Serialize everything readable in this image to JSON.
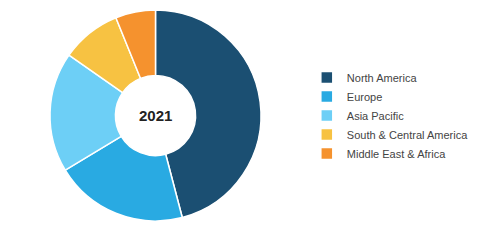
{
  "chart_data": {
    "type": "donut",
    "categories": [
      "North America",
      "Europe",
      "Asia Pacific",
      "South & Central America",
      "Middle East & Africa"
    ],
    "values": [
      45,
      20,
      18,
      9,
      6
    ],
    "colors": [
      "#1b4f72",
      "#29aae2",
      "#6dcff6",
      "#f7c242",
      "#f5922e"
    ],
    "annotations": [
      "2021"
    ],
    "legend": "right"
  }
}
